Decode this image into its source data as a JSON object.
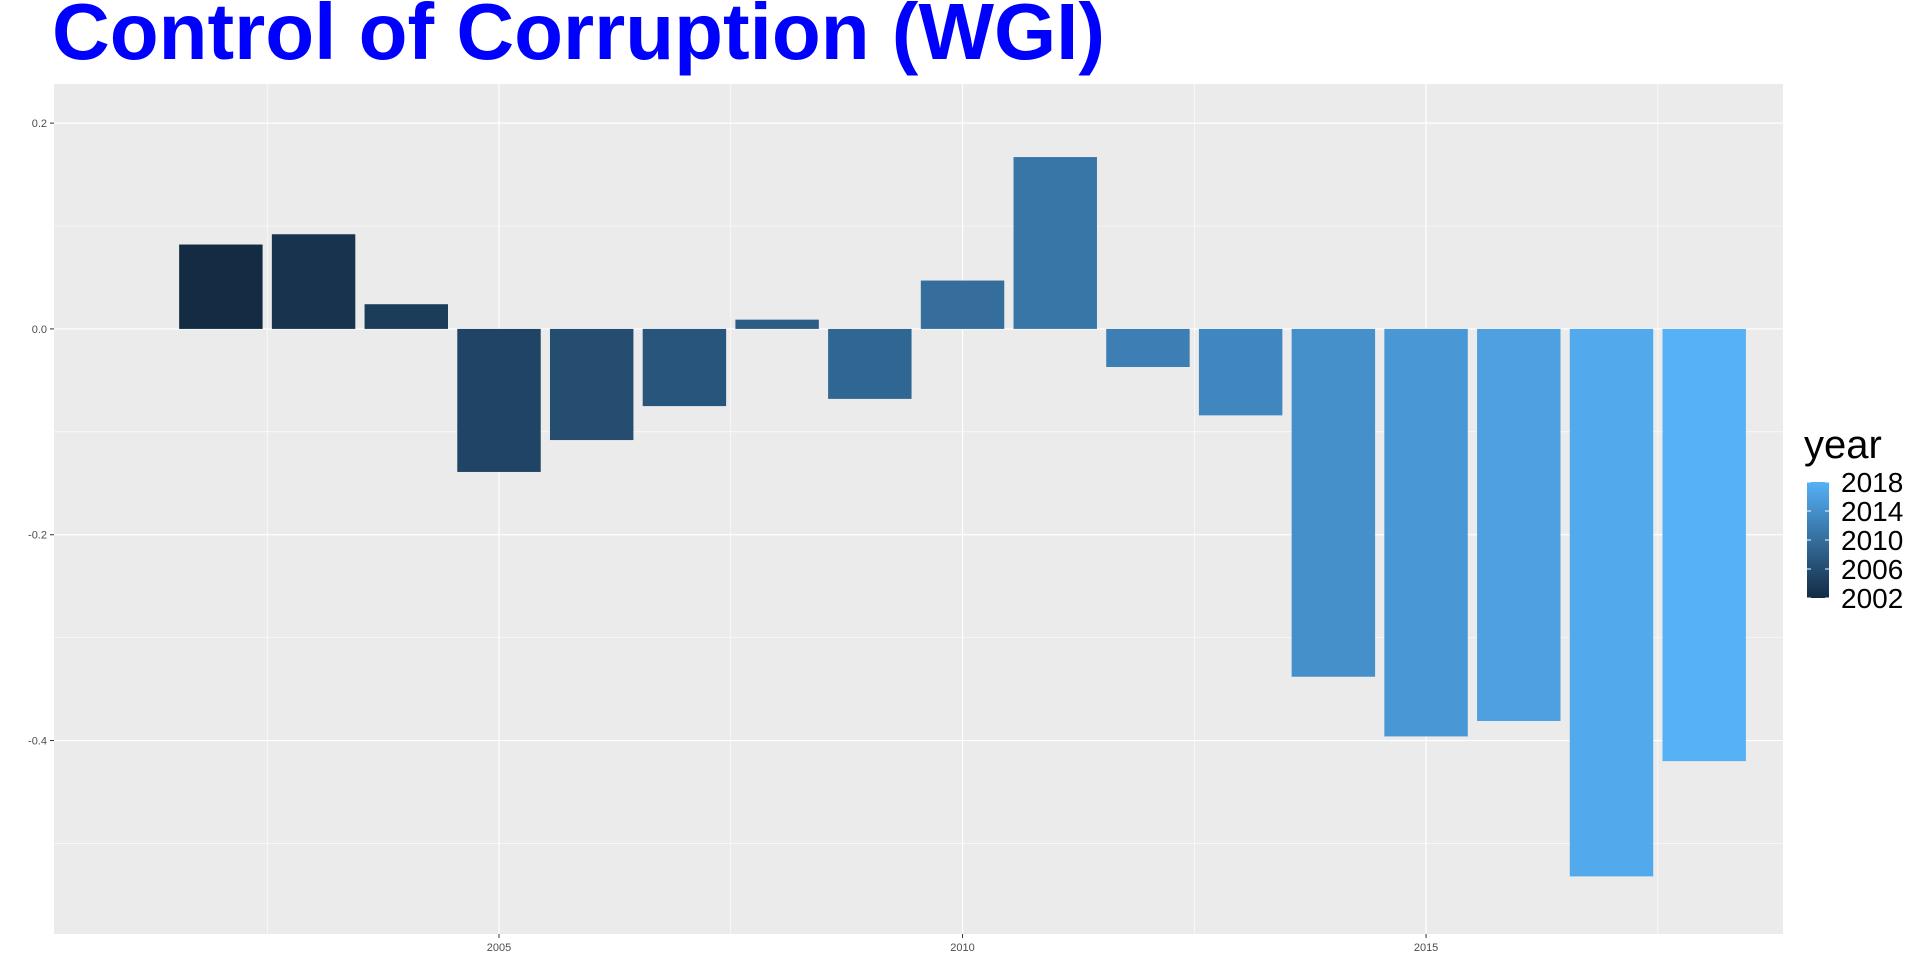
{
  "chart_data": {
    "type": "bar",
    "title": "Control of Corruption (WGI)",
    "x": [
      2002,
      2003,
      2004,
      2005,
      2006,
      2007,
      2008,
      2009,
      2010,
      2011,
      2012,
      2013,
      2014,
      2015,
      2016,
      2017,
      2018
    ],
    "values": [
      0.082,
      0.092,
      0.024,
      -0.139,
      -0.108,
      -0.075,
      0.009,
      -0.068,
      0.047,
      0.167,
      -0.037,
      -0.084,
      -0.338,
      -0.396,
      -0.381,
      -0.532,
      -0.42
    ],
    "xlabel": "",
    "ylabel": "",
    "xlim": [
      2000.2,
      2018.85
    ],
    "ylim": [
      -0.588,
      0.238
    ],
    "x_ticks": [
      2005,
      2010,
      2015
    ],
    "x_tick_labels": [
      "2005",
      "2010",
      "2015"
    ],
    "y_ticks": [
      0.2,
      0.0,
      -0.2,
      -0.4
    ],
    "y_tick_labels": [
      "0.2",
      "0.0",
      "-0.2",
      "-0.4"
    ],
    "grid": true,
    "panel_background": "#ebebeb",
    "color_low": "#132b43",
    "color_high": "#56b1f7",
    "legend": {
      "title": "year",
      "placement": "right",
      "labels": [
        "2018",
        "2014",
        "2010",
        "2006",
        "2002"
      ],
      "values": [
        2018,
        2014,
        2010,
        2006,
        2002
      ]
    }
  }
}
